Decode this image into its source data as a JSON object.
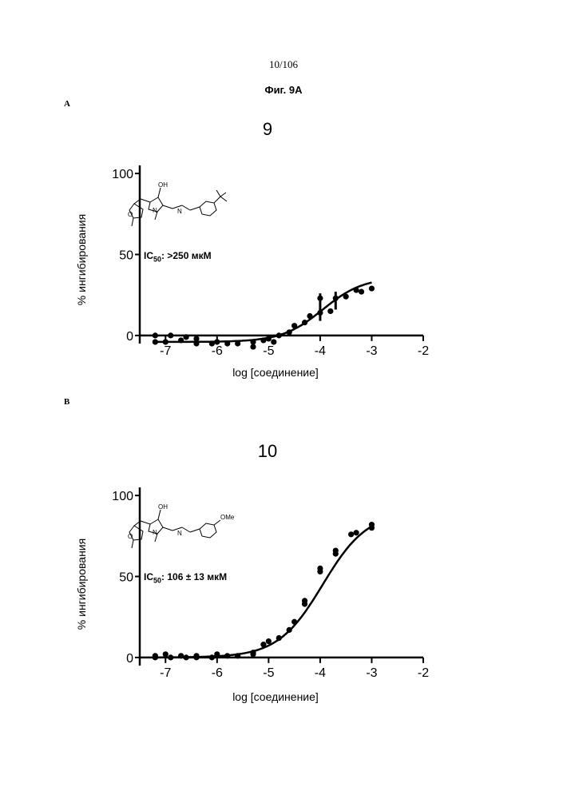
{
  "page": {
    "page_number": "10/106",
    "figure_title": "Фиг. 9А"
  },
  "chart_data": [
    {
      "type": "scatter",
      "panel": "A",
      "title": "9",
      "xlabel": "log [соединение]",
      "ylabel": "% ингибирования",
      "xlim": [
        -7.5,
        -2
      ],
      "ylim": [
        -5,
        105
      ],
      "xticks": [
        -7,
        -6,
        -5,
        -4,
        -3,
        -2
      ],
      "xtick_labels": [
        "-7",
        "-6",
        "-5",
        "-4",
        "-3",
        "-2"
      ],
      "yticks": [
        0,
        50,
        100
      ],
      "ytick_labels": [
        "0",
        "50",
        "100"
      ],
      "ic50_label": "IC",
      "ic50_sub": "50",
      "ic50_value": ": >250 мкМ",
      "points": [
        {
          "x": -7.2,
          "y": -4
        },
        {
          "x": -7.2,
          "y": 0
        },
        {
          "x": -7.0,
          "y": -4
        },
        {
          "x": -6.9,
          "y": 0
        },
        {
          "x": -6.7,
          "y": -3
        },
        {
          "x": -6.6,
          "y": -1
        },
        {
          "x": -6.4,
          "y": -5
        },
        {
          "x": -6.4,
          "y": -2
        },
        {
          "x": -6.1,
          "y": -5
        },
        {
          "x": -6.0,
          "y": -4
        },
        {
          "x": -5.8,
          "y": -5
        },
        {
          "x": -5.6,
          "y": -5
        },
        {
          "x": -5.3,
          "y": -7
        },
        {
          "x": -5.3,
          "y": -4
        },
        {
          "x": -5.1,
          "y": -3
        },
        {
          "x": -5.0,
          "y": -2
        },
        {
          "x": -4.9,
          "y": -4
        },
        {
          "x": -4.8,
          "y": 0
        },
        {
          "x": -4.6,
          "y": 2
        },
        {
          "x": -4.5,
          "y": 6
        },
        {
          "x": -4.3,
          "y": 8
        },
        {
          "x": -4.2,
          "y": 12
        },
        {
          "x": -4.0,
          "y": 14
        },
        {
          "x": -4.0,
          "y": 23
        },
        {
          "x": -3.8,
          "y": 15
        },
        {
          "x": -3.7,
          "y": 23
        },
        {
          "x": -3.5,
          "y": 24
        },
        {
          "x": -3.3,
          "y": 28
        },
        {
          "x": -3.2,
          "y": 27
        },
        {
          "x": -3.0,
          "y": 29
        }
      ],
      "error_bars": [
        {
          "x": -4.0,
          "low": 9,
          "high": 26
        },
        {
          "x": -3.7,
          "low": 16,
          "high": 27
        }
      ],
      "fit_curve": {
        "bottom": -4,
        "top": 36,
        "logEC50": -3.95,
        "hill": 1.1
      }
    },
    {
      "type": "scatter",
      "panel": "B",
      "title": "10",
      "xlabel": "log [соединение]",
      "ylabel": "% ингибирования",
      "xlim": [
        -7.5,
        -2
      ],
      "ylim": [
        -5,
        105
      ],
      "xticks": [
        -7,
        -6,
        -5,
        -4,
        -3,
        -2
      ],
      "xtick_labels": [
        "-7",
        "-6",
        "-5",
        "-4",
        "-3",
        "-2"
      ],
      "yticks": [
        0,
        50,
        100
      ],
      "ytick_labels": [
        "0",
        "50",
        "100"
      ],
      "ic50_label": "IC",
      "ic50_sub": "50",
      "ic50_value": ": 106 ± 13 мкМ",
      "points": [
        {
          "x": -7.2,
          "y": 1
        },
        {
          "x": -7.2,
          "y": 0
        },
        {
          "x": -7.0,
          "y": 2
        },
        {
          "x": -6.9,
          "y": 0
        },
        {
          "x": -6.7,
          "y": 1
        },
        {
          "x": -6.6,
          "y": 0
        },
        {
          "x": -6.4,
          "y": 1
        },
        {
          "x": -6.4,
          "y": 0
        },
        {
          "x": -6.1,
          "y": 0
        },
        {
          "x": -6.0,
          "y": 2
        },
        {
          "x": -5.8,
          "y": 1
        },
        {
          "x": -5.6,
          "y": 1
        },
        {
          "x": -5.3,
          "y": 2
        },
        {
          "x": -5.3,
          "y": 3
        },
        {
          "x": -5.1,
          "y": 8
        },
        {
          "x": -5.0,
          "y": 10
        },
        {
          "x": -4.8,
          "y": 12
        },
        {
          "x": -4.6,
          "y": 17
        },
        {
          "x": -4.5,
          "y": 22
        },
        {
          "x": -4.3,
          "y": 33
        },
        {
          "x": -4.3,
          "y": 35
        },
        {
          "x": -4.0,
          "y": 53
        },
        {
          "x": -4.0,
          "y": 55
        },
        {
          "x": -3.7,
          "y": 64
        },
        {
          "x": -3.7,
          "y": 66
        },
        {
          "x": -3.4,
          "y": 76
        },
        {
          "x": -3.3,
          "y": 77
        },
        {
          "x": -3.0,
          "y": 80
        },
        {
          "x": -3.0,
          "y": 82
        }
      ],
      "error_bars": [],
      "fit_curve": {
        "bottom": 0,
        "top": 90,
        "logEC50": -3.95,
        "hill": 1.0
      }
    }
  ]
}
